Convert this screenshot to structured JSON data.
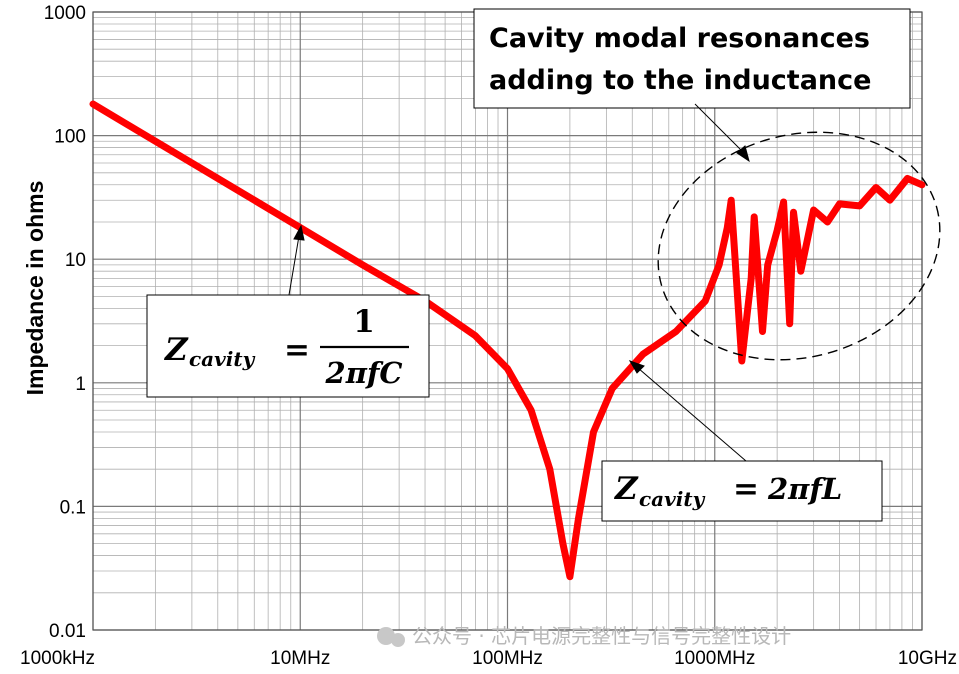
{
  "chart_data": {
    "type": "line",
    "title": "",
    "xlabel": "",
    "ylabel": "Impedance in ohms",
    "x_scale": "log",
    "y_scale": "log",
    "xlim": [
      1000000,
      10000000000
    ],
    "ylim": [
      0.01,
      1000
    ],
    "grid": true,
    "x_tick_values": [
      1000000,
      10000000,
      100000000,
      1000000000,
      10000000000
    ],
    "x_tick_labels": [
      "1000kHz",
      "10MHz",
      "100MHz",
      "1000MHz",
      "10GHz"
    ],
    "y_tick_values": [
      1000,
      100,
      10,
      1,
      0.1,
      0.01
    ],
    "y_tick_labels": [
      "1000",
      "100",
      "10",
      "1",
      "0.1",
      "0.01"
    ],
    "series": [
      {
        "color": "#ff0000",
        "x": [
          1000000,
          2000000,
          5000000,
          10000000,
          20000000,
          40000000,
          70000000,
          100000000,
          130000000,
          160000000,
          185000000,
          200000000,
          220000000,
          260000000,
          320000000,
          450000000,
          650000000,
          900000000,
          1050000000,
          1150000000,
          1200000000,
          1350000000,
          1500000000,
          1550000000,
          1700000000,
          1800000000,
          2000000000,
          2150000000,
          2300000000,
          2400000000,
          2600000000,
          3000000000,
          3500000000,
          4000000000,
          5000000000,
          6000000000,
          7000000000,
          8500000000,
          10000000000
        ],
        "y": [
          180,
          90,
          36,
          18,
          9,
          4.6,
          2.4,
          1.3,
          0.6,
          0.2,
          0.05,
          0.027,
          0.08,
          0.4,
          0.9,
          1.7,
          2.6,
          4.6,
          9,
          18,
          30,
          1.5,
          7,
          22,
          2.6,
          9,
          17,
          29,
          3,
          24,
          8,
          25,
          20,
          28,
          27,
          38,
          30,
          45,
          40
        ]
      }
    ],
    "annotations": [
      "Cavity modal resonances adding to the inductance"
    ],
    "formula_c": {
      "lhs": "Z",
      "sub": "cavity",
      "eq": "=",
      "numerator": "1",
      "denominator": "2πfC"
    },
    "formula_l": {
      "lhs": "Z",
      "sub": "cavity",
      "eq": "=",
      "rhs": "2πfL"
    }
  },
  "watermark": "公众号 · 芯片电源完整性与信号完整性设计",
  "colors": {
    "curve": "#ff0000",
    "grid_major": "#7a7a7a",
    "grid_minor": "#b0b0b0"
  }
}
